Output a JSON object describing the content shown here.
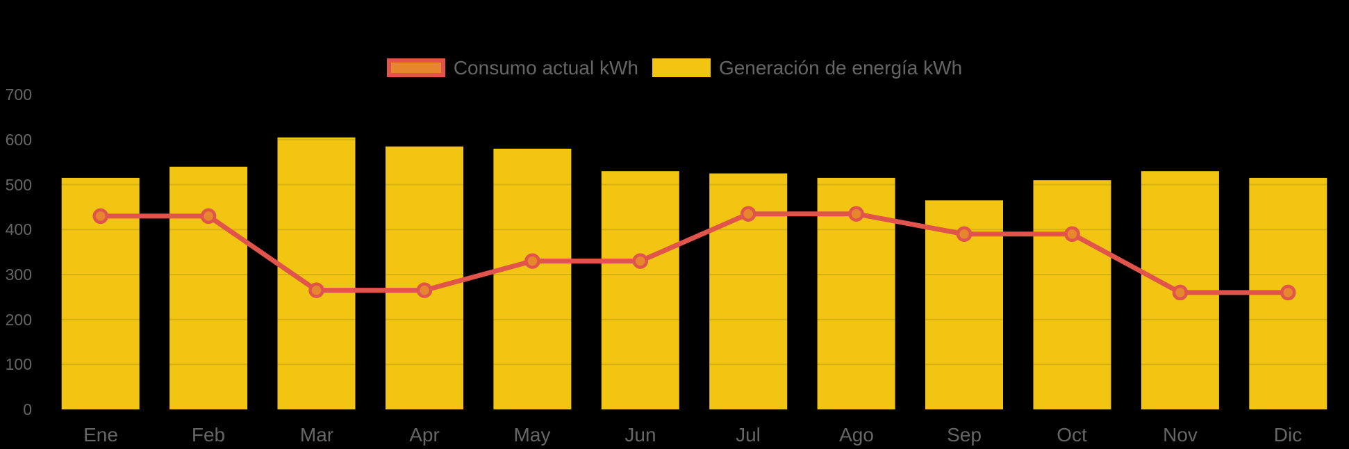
{
  "chart": {
    "background_color": "#000000",
    "label_color": "#666666",
    "gridline_color": "rgba(0,0,0,0.10)"
  },
  "chart_data": {
    "type": "bar",
    "subtype": "combo bar + line",
    "title": "",
    "xlabel": "",
    "ylabel": "",
    "categories": [
      "Ene",
      "Feb",
      "Mar",
      "Apr",
      "May",
      "Jun",
      "Jul",
      "Ago",
      "Sep",
      "Oct",
      "Nov",
      "Dic"
    ],
    "series": [
      {
        "name": "Consumo actual kWh",
        "type": "line",
        "color": "#E1544B",
        "point_fill": "#E6862D",
        "values": [
          430,
          430,
          265,
          265,
          330,
          330,
          435,
          435,
          390,
          390,
          260,
          260
        ]
      },
      {
        "name": "Generación de energía kWh",
        "type": "bar",
        "color": "#F2C513",
        "values": [
          515,
          540,
          605,
          585,
          580,
          530,
          525,
          515,
          465,
          510,
          530,
          515
        ]
      }
    ],
    "ylim": [
      0,
      700
    ],
    "yticks": [
      0,
      100,
      200,
      300,
      400,
      500,
      600,
      700
    ],
    "grid": "gridlines invisible on black background; faint tick stubs visible over bars",
    "legend_position": "top-center"
  }
}
